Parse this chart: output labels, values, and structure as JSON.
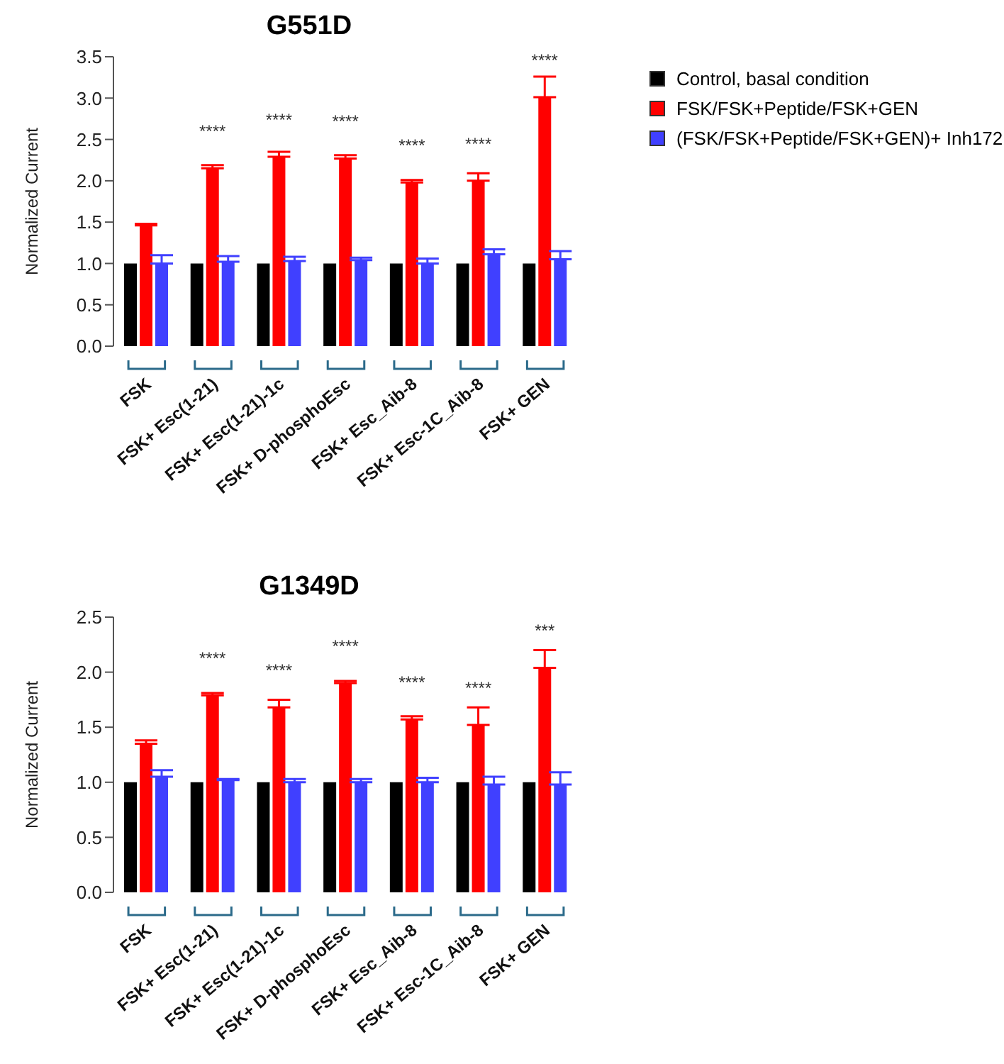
{
  "chart_data": [
    {
      "type": "bar",
      "title": "G551D",
      "ylabel": "Normalized Current",
      "categories": [
        "FSK",
        "FSK+ Esc(1-21)",
        "FSK+ Esc(1-21)-1c",
        "FSK+ D-phosphoEsc",
        "FSK+ Esc_Aib-8",
        "FSK+ Esc-1C_Aib-8",
        "FSK+ GEN"
      ],
      "series": [
        {
          "name": "Control, basal condition",
          "color": "#000000",
          "values": [
            1.0,
            1.0,
            1.0,
            1.0,
            1.0,
            1.0,
            1.0
          ]
        },
        {
          "name": "FSK/FSK+Peptide/FSK+GEN",
          "color": "#ff0000",
          "values": [
            1.46,
            2.15,
            2.29,
            2.27,
            1.98,
            2.0,
            3.01
          ],
          "errors": [
            [
              1.46,
              1.48
            ],
            [
              2.15,
              2.19
            ],
            [
              2.29,
              2.35
            ],
            [
              2.27,
              2.31
            ],
            [
              1.98,
              2.01
            ],
            [
              2.0,
              2.09
            ],
            [
              3.01,
              3.26
            ]
          ]
        },
        {
          "name": "(FSK/FSK+Peptide/FSK+GEN)+ Inh172",
          "color": "#4040ff",
          "values": [
            1.0,
            1.02,
            1.03,
            1.04,
            1.0,
            1.11,
            1.05
          ],
          "errors": [
            [
              1.0,
              1.1
            ],
            [
              1.02,
              1.09
            ],
            [
              1.03,
              1.08
            ],
            [
              1.04,
              1.07
            ],
            [
              1.0,
              1.06
            ],
            [
              1.11,
              1.17
            ],
            [
              1.05,
              1.15
            ]
          ]
        }
      ],
      "ylim": [
        0,
        3.5
      ],
      "yticks": [
        {
          "value": 0,
          "label": "0.0"
        },
        0.5,
        {
          "value": 1,
          "label": "1.0"
        },
        1.5,
        {
          "value": 2,
          "label": "2.0"
        },
        2.5,
        {
          "value": 3,
          "label": "3.0"
        },
        3.5
      ],
      "annotations": [
        "****",
        "****",
        "****",
        "****",
        "****",
        "****"
      ],
      "legend": "top right",
      "grid": false
    },
    {
      "type": "bar",
      "title": "G1349D",
      "ylabel": "Normalized Current",
      "categories": [
        "FSK",
        "FSK+ Esc(1-21)",
        "FSK+ Esc(1-21)-1c",
        "FSK+ D-phosphoEsc",
        "FSK+ Esc_Aib-8",
        "FSK+ Esc-1C_Aib-8",
        "FSK+ GEN"
      ],
      "series": [
        {
          "color": "#000000",
          "values": [
            1.0,
            1.0,
            1.0,
            1.0,
            1.0,
            1.0,
            1.0
          ]
        },
        {
          "color": "#ff0000",
          "values": [
            1.35,
            1.79,
            1.68,
            1.9,
            1.57,
            1.52,
            2.04
          ],
          "errors": [
            [
              1.35,
              1.38
            ],
            [
              1.79,
              1.81
            ],
            [
              1.68,
              1.75
            ],
            [
              1.9,
              1.92
            ],
            [
              1.57,
              1.6
            ],
            [
              1.52,
              1.68
            ],
            [
              2.04,
              2.2
            ]
          ]
        },
        {
          "color": "#4040ff",
          "values": [
            1.05,
            1.02,
            1.0,
            1.0,
            1.0,
            0.98,
            0.98
          ],
          "errors": [
            [
              1.05,
              1.11
            ],
            [
              1.02,
              1.03
            ],
            [
              1.0,
              1.03
            ],
            [
              1.0,
              1.03
            ],
            [
              1.0,
              1.04
            ],
            [
              0.98,
              1.05
            ],
            [
              0.98,
              1.09
            ]
          ]
        }
      ],
      "ylim": [
        0,
        2.5
      ],
      "yticks": [
        {
          "value": 0,
          "label": "0.0"
        },
        0.5,
        {
          "value": 1,
          "label": "1.0"
        },
        1.5,
        {
          "value": 2,
          "label": "2.0"
        },
        2.5
      ],
      "annotations": [
        "****",
        "****",
        "****",
        "****",
        "****",
        "***"
      ],
      "legend": false,
      "grid": false
    }
  ]
}
